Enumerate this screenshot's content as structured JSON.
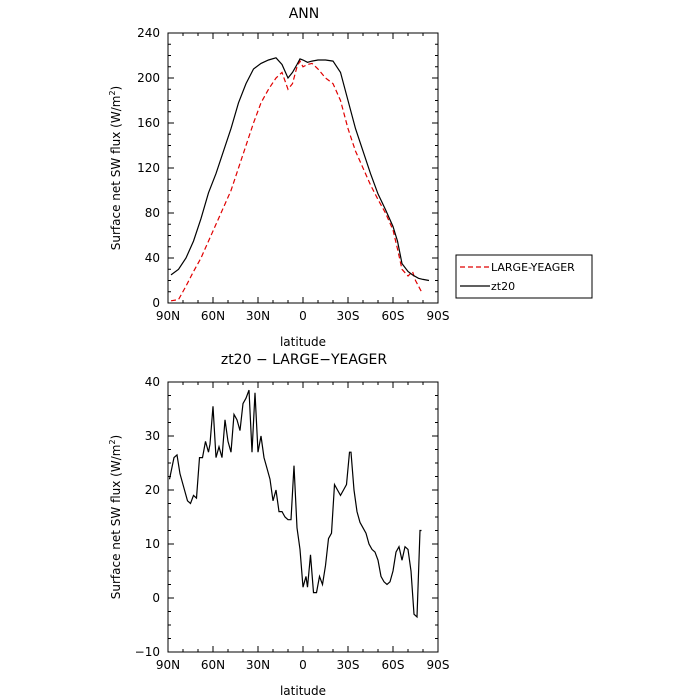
{
  "chart_data": [
    {
      "type": "line",
      "title": "ANN",
      "xlabel": "latitude",
      "ylabel": "Surface net SW flux (W/m",
      "ylabel_sup": "2",
      "ylabel_end": ")",
      "xlim": [
        90,
        -90
      ],
      "ylim": [
        0,
        240
      ],
      "x_ticks": [
        90,
        60,
        30,
        0,
        -30,
        -60,
        -90
      ],
      "x_tick_labels": [
        "90N",
        "60N",
        "30N",
        "0",
        "30S",
        "60S",
        "90S"
      ],
      "y_ticks": [
        0,
        40,
        80,
        120,
        160,
        200,
        240
      ],
      "y_tick_labels": [
        "0",
        "40",
        "80",
        "120",
        "160",
        "200",
        "240"
      ],
      "legend_position": "right",
      "series": [
        {
          "name": "LARGE-YEAGER",
          "color": "#e00000",
          "dash": true,
          "x": [
            88,
            83,
            78,
            73,
            68,
            63,
            58,
            53,
            48,
            43,
            38,
            33,
            28,
            23,
            18,
            14,
            10,
            7,
            4,
            2,
            0,
            -3,
            -6,
            -10,
            -15,
            -20,
            -25,
            -30,
            -35,
            -40,
            -45,
            -50,
            -55,
            -60,
            -63,
            -66,
            -70,
            -73,
            -75,
            -77,
            -79
          ],
          "y": [
            2,
            3,
            15,
            28,
            40,
            55,
            70,
            85,
            100,
            120,
            140,
            160,
            178,
            190,
            200,
            205,
            190,
            195,
            210,
            215,
            210,
            212,
            213,
            208,
            200,
            195,
            180,
            155,
            135,
            120,
            105,
            92,
            80,
            65,
            48,
            30,
            24,
            28,
            20,
            15,
            10
          ]
        },
        {
          "name": "zt20",
          "color": "#000000",
          "dash": false,
          "x": [
            88,
            83,
            78,
            73,
            68,
            63,
            58,
            53,
            48,
            43,
            38,
            33,
            28,
            23,
            18,
            14,
            10,
            7,
            4,
            2,
            0,
            -3,
            -6,
            -10,
            -15,
            -20,
            -25,
            -30,
            -35,
            -40,
            -45,
            -50,
            -55,
            -60,
            -63,
            -66,
            -70,
            -73,
            -77,
            -80,
            -84
          ],
          "y": [
            25,
            30,
            40,
            55,
            75,
            98,
            115,
            135,
            155,
            178,
            195,
            208,
            213,
            216,
            218,
            212,
            200,
            205,
            212,
            217,
            216,
            214,
            215,
            216,
            216,
            215,
            205,
            180,
            155,
            135,
            115,
            97,
            83,
            68,
            55,
            35,
            28,
            25,
            22,
            21,
            20
          ]
        }
      ]
    },
    {
      "type": "line",
      "title": "zt20 − LARGE−YEAGER",
      "xlabel": "latitude",
      "ylabel": "Surface net SW flux (W/m",
      "ylabel_sup": "2",
      "ylabel_end": ")",
      "xlim": [
        90,
        -90
      ],
      "ylim": [
        -10,
        40
      ],
      "x_ticks": [
        90,
        60,
        30,
        0,
        -30,
        -60,
        -90
      ],
      "x_tick_labels": [
        "90N",
        "60N",
        "30N",
        "0",
        "30S",
        "60S",
        "90S"
      ],
      "y_ticks": [
        -10,
        0,
        10,
        20,
        30,
        40
      ],
      "y_tick_labels": [
        "−10",
        "0",
        "10",
        "20",
        "30",
        "40"
      ],
      "series": [
        {
          "color": "#000000",
          "dash": false,
          "x": [
            89,
            86,
            84,
            82,
            79,
            77,
            75,
            73,
            71,
            69,
            67,
            65,
            63,
            62,
            60,
            58,
            56,
            54,
            52,
            50,
            48,
            46,
            44,
            42,
            40,
            38,
            36,
            34,
            32,
            30,
            28,
            26,
            24,
            22,
            20,
            18,
            16,
            14,
            12,
            10,
            8,
            6,
            4,
            3,
            2,
            0,
            -2,
            -3,
            -5,
            -7,
            -9,
            -11,
            -13,
            -15,
            -17,
            -19,
            -21,
            -23,
            -25,
            -27,
            -29,
            -31,
            -32,
            -34,
            -36,
            -38,
            -40,
            -42,
            -44,
            -46,
            -48,
            -50,
            -52,
            -54,
            -56,
            -58,
            -60,
            -62,
            -64,
            -66,
            -68,
            -70,
            -72,
            -74,
            -76,
            -78,
            -79
          ],
          "y": [
            22,
            26,
            26.5,
            23,
            20,
            18,
            17.5,
            19,
            18.5,
            26,
            26,
            29,
            27,
            28.5,
            35.5,
            26,
            28,
            26,
            33,
            29,
            27,
            34,
            33,
            31,
            36,
            37,
            38.5,
            27,
            38,
            27,
            30,
            26,
            24,
            22,
            18,
            20,
            16,
            16,
            15,
            14.5,
            14.5,
            24.5,
            13,
            11,
            9,
            2,
            4,
            2,
            8,
            1,
            1,
            4,
            2.5,
            6,
            11,
            12,
            21,
            20,
            19,
            20,
            21,
            27,
            27,
            20,
            16,
            14,
            13,
            12,
            10,
            9,
            8.5,
            7,
            4,
            3,
            2.5,
            3,
            5,
            8.5,
            9.5,
            7,
            9.5,
            9,
            5,
            -3,
            -3.5,
            12.5,
            12.5
          ]
        }
      ]
    }
  ]
}
